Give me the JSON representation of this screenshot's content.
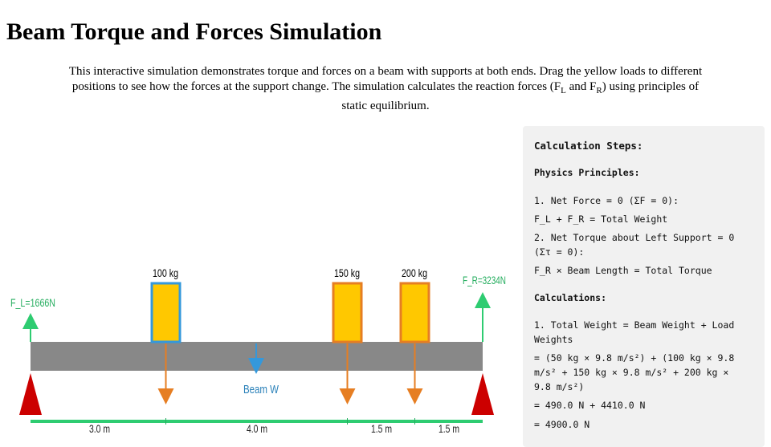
{
  "page": {
    "title": "Beam Torque and Forces Simulation",
    "intro_text": "This interactive simulation demonstrates torque and forces on a beam with supports at both ends. Drag the yellow loads to different positions to see how the forces at the support change. The simulation calculates the reaction forces (",
    "intro_fl_main": "F",
    "intro_fl_sub": "L",
    "intro_and": " and ",
    "intro_fr_main": "F",
    "intro_fr_sub": "R",
    "intro_tail": ") using principles of static equilibrium."
  },
  "simulation": {
    "left_force_label": "F_L=1666N",
    "right_force_label": "F_R=3234N",
    "beam_weight_label": "Beam W",
    "loads": [
      {
        "label": "100 kg",
        "selected": true
      },
      {
        "label": "150 kg",
        "selected": false
      },
      {
        "label": "200 kg",
        "selected": false
      }
    ],
    "distance_labels": [
      "3.0 m",
      "4.0 m",
      "1.5 m",
      "1.5 m"
    ],
    "colors": {
      "beam": "#888888",
      "load_fill": "#ffc800",
      "load_border": "#e67e22",
      "selected_border": "#3498db",
      "support": "#d00000",
      "reaction_arrow": "#2ecc71",
      "load_arrow": "#e67e22",
      "beam_weight_arrow": "#3498db",
      "ruler": "#2ecc71"
    }
  },
  "calculation": {
    "heading": "Calculation Steps:",
    "principles_heading": "Physics Principles:",
    "principles": [
      "1. Net Force = 0 (ΣF = 0):",
      "F_L + F_R = Total Weight",
      "2. Net Torque about Left Support = 0 (Στ = 0):",
      "F_R × Beam Length = Total Torque"
    ],
    "calculations_heading": "Calculations:",
    "calculations": [
      "1. Total Weight = Beam Weight + Load Weights",
      "= (50 kg × 9.8 m/s²) + (100 kg × 9.8 m/s² + 150 kg × 9.8 m/s² + 200 kg × 9.8 m/s²)",
      "= 490.0 N + 4410.0 N",
      "= 4900.0 N"
    ]
  }
}
